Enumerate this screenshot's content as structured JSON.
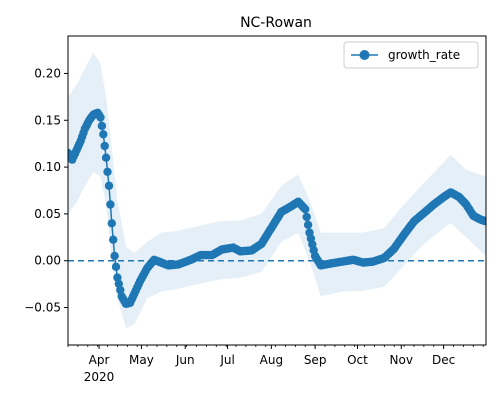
{
  "chart_data": {
    "type": "line",
    "title": "NC-Rowan",
    "xlabel": "",
    "ylabel": "",
    "x_start": "2020-03-10",
    "x_end": "2020-12-31",
    "ylim": [
      -0.09,
      0.24
    ],
    "yticks": [
      -0.05,
      0.0,
      0.05,
      0.1,
      0.15,
      0.2
    ],
    "ytick_labels": [
      "−0.05",
      "0.00",
      "0.05",
      "0.10",
      "0.15",
      "0.20"
    ],
    "xtick_months": [
      "Apr",
      "May",
      "Jun",
      "Jul",
      "Aug",
      "Sep",
      "Oct",
      "Nov",
      "Dec"
    ],
    "xtick_dates": [
      "2020-04-01",
      "2020-05-01",
      "2020-06-01",
      "2020-07-01",
      "2020-08-01",
      "2020-09-01",
      "2020-10-01",
      "2020-11-01",
      "2020-12-01"
    ],
    "xtick_year_label": "2020",
    "reference_line": 0.0,
    "legend": {
      "position": "top-right",
      "label": "growth_rate"
    },
    "colors": {
      "line": "#1f77b4",
      "band": "#dce9f5"
    },
    "series": [
      {
        "name": "growth_rate",
        "points": [
          [
            "2020-03-10",
            0.115
          ],
          [
            "2020-03-13",
            0.108
          ],
          [
            "2020-03-16",
            0.118
          ],
          [
            "2020-03-19",
            0.128
          ],
          [
            "2020-03-22",
            0.141
          ],
          [
            "2020-03-25",
            0.15
          ],
          [
            "2020-03-28",
            0.156
          ],
          [
            "2020-03-31",
            0.158
          ],
          [
            "2020-04-02",
            0.153
          ],
          [
            "2020-04-04",
            0.135
          ],
          [
            "2020-04-06",
            0.11
          ],
          [
            "2020-04-08",
            0.08
          ],
          [
            "2020-04-10",
            0.04
          ],
          [
            "2020-04-12",
            0.005
          ],
          [
            "2020-04-14",
            -0.018
          ],
          [
            "2020-04-17",
            -0.038
          ],
          [
            "2020-04-20",
            -0.046
          ],
          [
            "2020-04-23",
            -0.045
          ],
          [
            "2020-04-26",
            -0.035
          ],
          [
            "2020-04-30",
            -0.022
          ],
          [
            "2020-05-05",
            -0.008
          ],
          [
            "2020-05-10",
            0.001
          ],
          [
            "2020-05-15",
            -0.002
          ],
          [
            "2020-05-20",
            -0.005
          ],
          [
            "2020-05-27",
            -0.004
          ],
          [
            "2020-06-05",
            0.001
          ],
          [
            "2020-06-12",
            0.006
          ],
          [
            "2020-06-20",
            0.006
          ],
          [
            "2020-06-27",
            0.012
          ],
          [
            "2020-07-05",
            0.014
          ],
          [
            "2020-07-10",
            0.01
          ],
          [
            "2020-07-18",
            0.011
          ],
          [
            "2020-07-25",
            0.018
          ],
          [
            "2020-08-01",
            0.035
          ],
          [
            "2020-08-08",
            0.052
          ],
          [
            "2020-08-15",
            0.058
          ],
          [
            "2020-08-20",
            0.063
          ],
          [
            "2020-08-25",
            0.055
          ],
          [
            "2020-08-28",
            0.03
          ],
          [
            "2020-09-01",
            0.005
          ],
          [
            "2020-09-05",
            -0.005
          ],
          [
            "2020-09-12",
            -0.003
          ],
          [
            "2020-09-20",
            -0.001
          ],
          [
            "2020-09-28",
            0.001
          ],
          [
            "2020-10-05",
            -0.002
          ],
          [
            "2020-10-12",
            -0.001
          ],
          [
            "2020-10-20",
            0.003
          ],
          [
            "2020-10-27",
            0.013
          ],
          [
            "2020-11-03",
            0.028
          ],
          [
            "2020-11-10",
            0.042
          ],
          [
            "2020-11-17",
            0.051
          ],
          [
            "2020-11-24",
            0.06
          ],
          [
            "2020-12-01",
            0.068
          ],
          [
            "2020-12-06",
            0.073
          ],
          [
            "2020-12-12",
            0.068
          ],
          [
            "2020-12-17",
            0.06
          ],
          [
            "2020-12-22",
            0.048
          ],
          [
            "2020-12-27",
            0.044
          ],
          [
            "2020-12-31",
            0.042
          ]
        ],
        "band_upper": [
          [
            "2020-03-10",
            0.175
          ],
          [
            "2020-03-16",
            0.188
          ],
          [
            "2020-03-22",
            0.205
          ],
          [
            "2020-03-28",
            0.222
          ],
          [
            "2020-04-02",
            0.21
          ],
          [
            "2020-04-06",
            0.175
          ],
          [
            "2020-04-10",
            0.12
          ],
          [
            "2020-04-14",
            0.065
          ],
          [
            "2020-04-20",
            0.015
          ],
          [
            "2020-04-26",
            0.008
          ],
          [
            "2020-05-05",
            0.02
          ],
          [
            "2020-05-15",
            0.03
          ],
          [
            "2020-05-27",
            0.032
          ],
          [
            "2020-06-10",
            0.037
          ],
          [
            "2020-06-25",
            0.042
          ],
          [
            "2020-07-10",
            0.043
          ],
          [
            "2020-07-25",
            0.05
          ],
          [
            "2020-08-08",
            0.08
          ],
          [
            "2020-08-20",
            0.092
          ],
          [
            "2020-08-28",
            0.065
          ],
          [
            "2020-09-05",
            0.03
          ],
          [
            "2020-09-20",
            0.03
          ],
          [
            "2020-10-05",
            0.03
          ],
          [
            "2020-10-20",
            0.035
          ],
          [
            "2020-11-03",
            0.06
          ],
          [
            "2020-11-17",
            0.083
          ],
          [
            "2020-12-01",
            0.105
          ],
          [
            "2020-12-06",
            0.113
          ],
          [
            "2020-12-17",
            0.097
          ],
          [
            "2020-12-31",
            0.09
          ]
        ],
        "band_lower": [
          [
            "2020-03-10",
            0.05
          ],
          [
            "2020-03-16",
            0.062
          ],
          [
            "2020-03-22",
            0.08
          ],
          [
            "2020-03-28",
            0.095
          ],
          [
            "2020-04-02",
            0.09
          ],
          [
            "2020-04-06",
            0.06
          ],
          [
            "2020-04-10",
            0.0
          ],
          [
            "2020-04-14",
            -0.04
          ],
          [
            "2020-04-20",
            -0.072
          ],
          [
            "2020-04-26",
            -0.068
          ],
          [
            "2020-05-05",
            -0.04
          ],
          [
            "2020-05-15",
            -0.033
          ],
          [
            "2020-05-27",
            -0.03
          ],
          [
            "2020-06-10",
            -0.025
          ],
          [
            "2020-06-25",
            -0.02
          ],
          [
            "2020-07-10",
            -0.018
          ],
          [
            "2020-07-25",
            -0.012
          ],
          [
            "2020-08-08",
            0.02
          ],
          [
            "2020-08-20",
            0.03
          ],
          [
            "2020-08-28",
            0.0
          ],
          [
            "2020-09-05",
            -0.038
          ],
          [
            "2020-09-20",
            -0.033
          ],
          [
            "2020-10-05",
            -0.032
          ],
          [
            "2020-10-20",
            -0.028
          ],
          [
            "2020-11-03",
            -0.005
          ],
          [
            "2020-11-17",
            0.018
          ],
          [
            "2020-12-01",
            0.035
          ],
          [
            "2020-12-06",
            0.04
          ],
          [
            "2020-12-17",
            0.025
          ],
          [
            "2020-12-31",
            0.005
          ]
        ]
      }
    ]
  }
}
